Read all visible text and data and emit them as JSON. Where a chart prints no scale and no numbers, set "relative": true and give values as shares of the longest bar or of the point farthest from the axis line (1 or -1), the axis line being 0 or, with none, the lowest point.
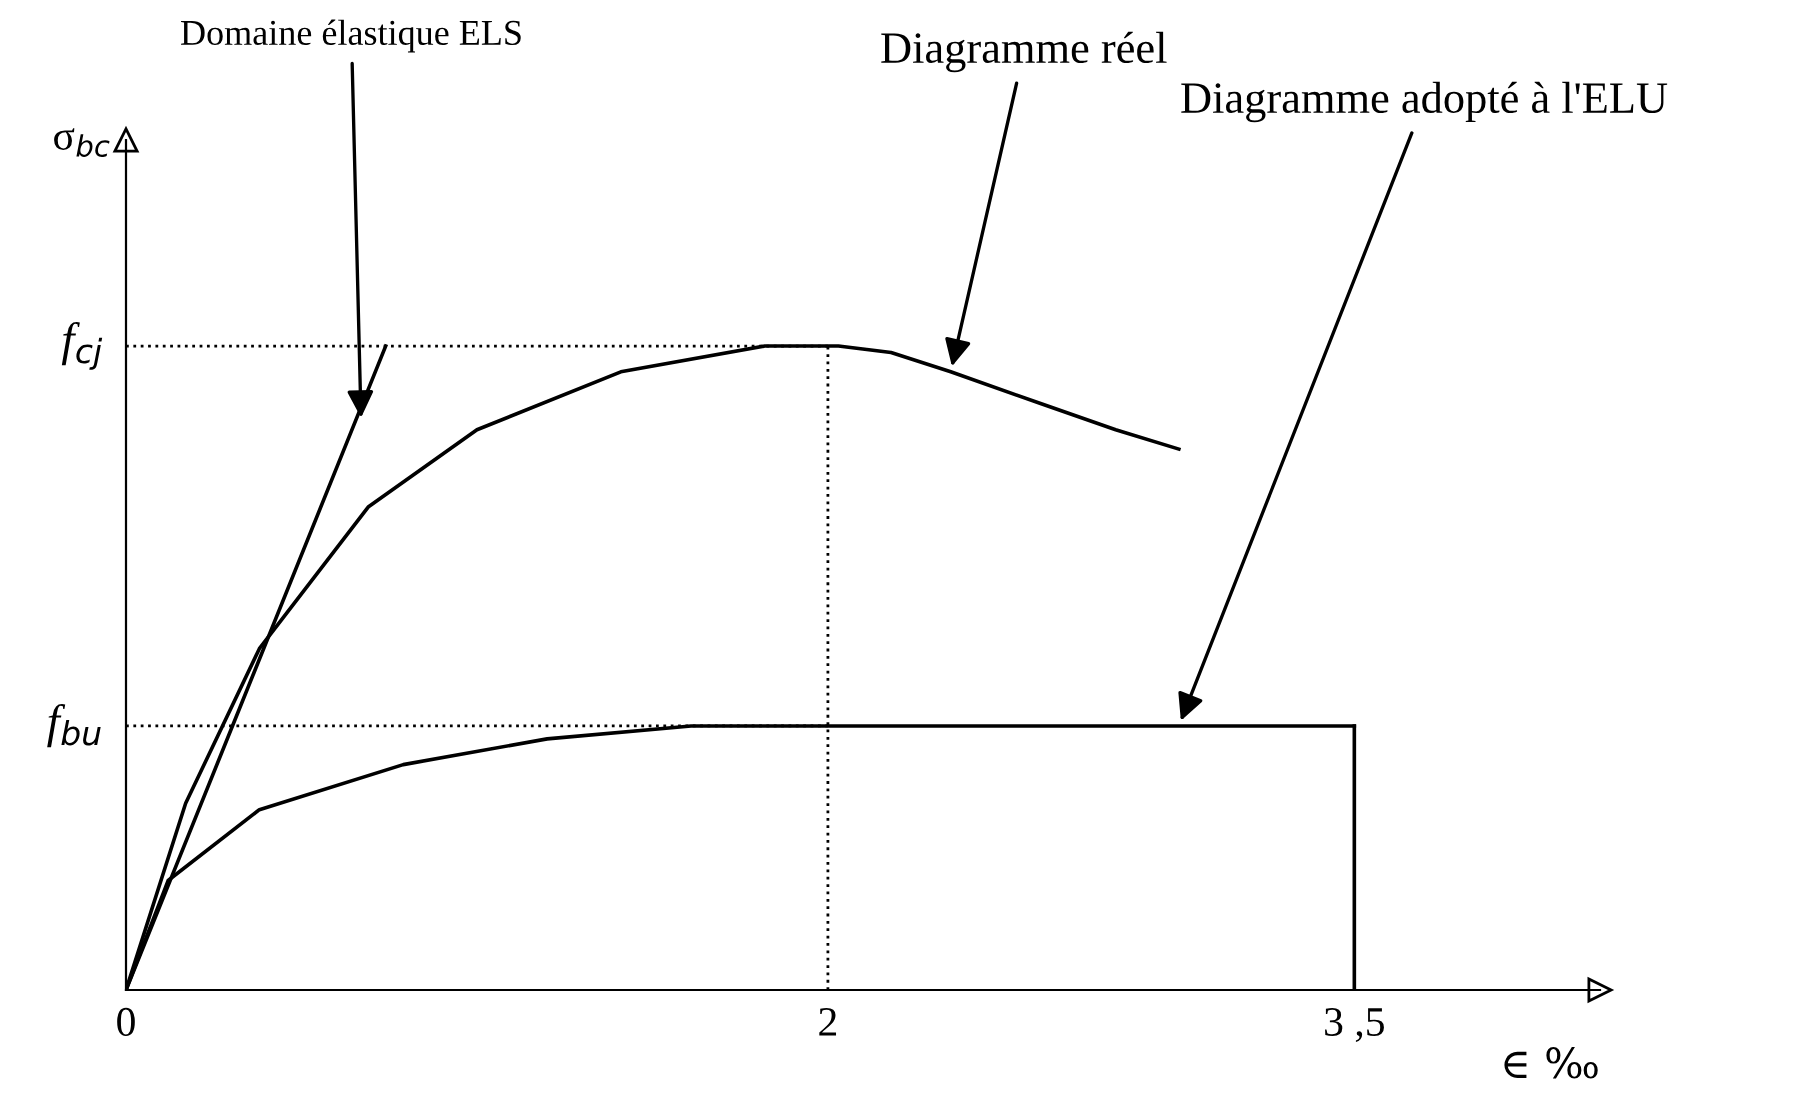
{
  "chart_data": {
    "type": "line",
    "relative": true,
    "xlabel": "∈ ‰",
    "ylabel": "σ$_{bc}$",
    "xlim": [
      0,
      4.2
    ],
    "xticks": [
      0,
      2,
      {
        "value": 3.5,
        "label": "3 ,5"
      }
    ],
    "series": [
      {
        "color": "#000000",
        "x": [
          0,
          0.17,
          0.38,
          0.69,
          1.0,
          1.41,
          1.82,
          2.03,
          2.18,
          2.35,
          2.61,
          2.82,
          3.0
        ],
        "values": [
          0,
          0.29,
          0.53,
          0.75,
          0.87,
          0.96,
          1.0,
          1.0,
          0.99,
          0.96,
          0.91,
          0.87,
          0.84
        ]
      },
      {
        "color": "#000000",
        "x": [
          0,
          0.12,
          0.38,
          0.79,
          1.2,
          1.61,
          2.0,
          3.5
        ],
        "values": [
          0,
          0.17,
          0.28,
          0.35,
          0.39,
          0.41,
          0.41,
          0.41
        ]
      },
      {
        "color": "#000000",
        "x": [
          3.5,
          3.5
        ],
        "values": [
          0,
          0.41
        ]
      },
      {
        "color": "#000000",
        "x": [
          0,
          0.74
        ],
        "values": [
          0,
          1.0
        ]
      },
      {
        "color": "#000000",
        "line_style": "dotted",
        "x": [
          0,
          2
        ],
        "values": [
          1.0,
          1.0
        ]
      },
      {
        "color": "#000000",
        "line_style": "dotted",
        "x": [
          2,
          2
        ],
        "values": [
          0,
          1.0
        ]
      },
      {
        "color": "#000000",
        "line_style": "dotted",
        "x": [
          0,
          2
        ],
        "values": [
          0.41,
          0.41
        ]
      }
    ],
    "annotations": [
      {
        "text": "Domaine élastique ELS",
        "x": 0.67,
        "y": 0.88
      },
      {
        "text": "Diagramme réel",
        "x": 2.35,
        "y": 0.96
      },
      {
        "text": "Diagramme adopté à l'ELU",
        "x": 3.0,
        "y": 0.41
      },
      {
        "text": "f$_{cj}$",
        "x": 0,
        "y": 1.0
      },
      {
        "text": "f$_{bu}$",
        "x": 0,
        "y": 0.41
      }
    ]
  }
}
